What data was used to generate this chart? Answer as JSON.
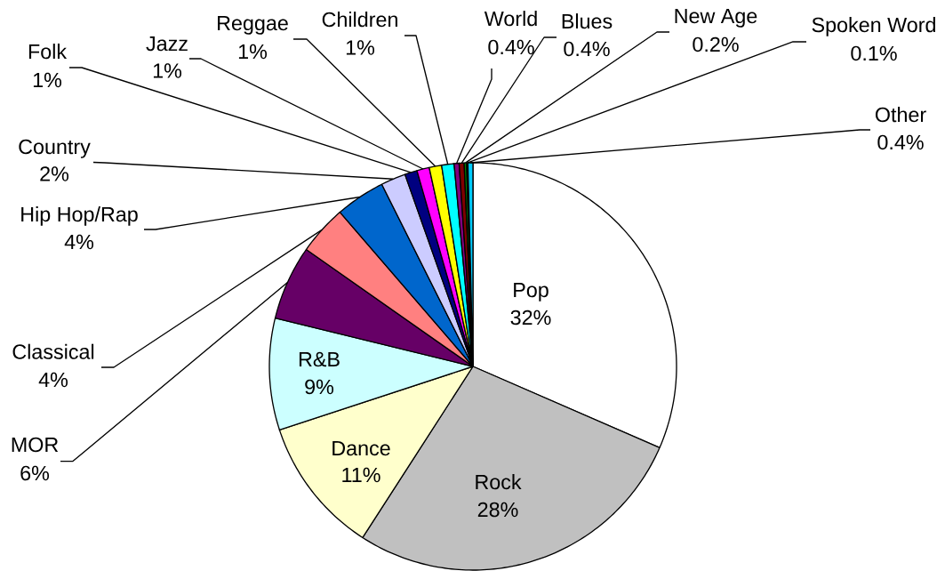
{
  "chart_data": {
    "type": "pie",
    "categories": [
      "Pop",
      "Rock",
      "Dance",
      "R&B",
      "MOR",
      "Classical",
      "Hip Hop/Rap",
      "Country",
      "Folk",
      "Jazz",
      "Reggae",
      "Children",
      "World",
      "Blues",
      "New Age",
      "Spoken Word",
      "Other"
    ],
    "values": [
      32,
      28,
      11,
      9,
      6,
      4,
      4,
      2,
      1,
      1,
      1,
      1,
      0.4,
      0.4,
      0.2,
      0.1,
      0.4
    ],
    "value_labels": [
      "32%",
      "28%",
      "11%",
      "9%",
      "6%",
      "4%",
      "4%",
      "2%",
      "1%",
      "1%",
      "1%",
      "1%",
      "0.4%",
      "0.4%",
      "0.2%",
      "0.1%",
      "0.4%"
    ],
    "colors": [
      "#ffffff",
      "#c0c0c0",
      "#ffffcc",
      "#ccffff",
      "#660066",
      "#ff8080",
      "#0066cc",
      "#ccccff",
      "#000080",
      "#ff00ff",
      "#ffff00",
      "#00ffff",
      "#800080",
      "#800000",
      "#008000",
      "#0000ff",
      "#00ccff"
    ]
  }
}
